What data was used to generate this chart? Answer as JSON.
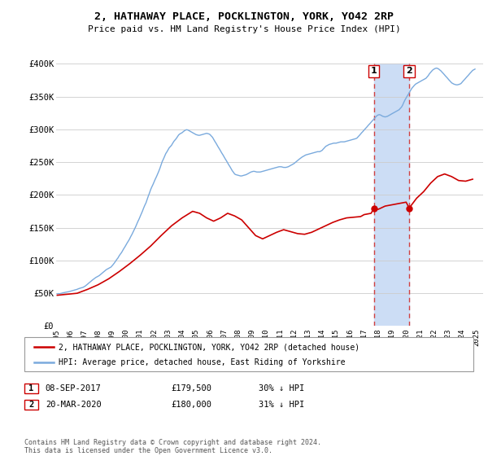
{
  "title": "2, HATHAWAY PLACE, POCKLINGTON, YORK, YO42 2RP",
  "subtitle": "Price paid vs. HM Land Registry's House Price Index (HPI)",
  "ylim": [
    0,
    400000
  ],
  "yticks": [
    0,
    50000,
    100000,
    150000,
    200000,
    250000,
    300000,
    350000,
    400000
  ],
  "ytick_labels": [
    "£0",
    "£50K",
    "£100K",
    "£150K",
    "£200K",
    "£250K",
    "£300K",
    "£350K",
    "£400K"
  ],
  "xlim_start": 1995.0,
  "xlim_end": 2025.5,
  "legend_line1": "2, HATHAWAY PLACE, POCKLINGTON, YORK, YO42 2RP (detached house)",
  "legend_line2": "HPI: Average price, detached house, East Riding of Yorkshire",
  "sale1_date": "08-SEP-2017",
  "sale1_price": "£179,500",
  "sale1_pct": "30% ↓ HPI",
  "sale1_x": 2017.69,
  "sale1_y": 179500,
  "sale2_date": "20-MAR-2020",
  "sale2_price": "£180,000",
  "sale2_pct": "31% ↓ HPI",
  "sale2_x": 2020.22,
  "sale2_y": 180000,
  "highlight_color": "#ccddf5",
  "vline_color": "#d04040",
  "red_line_color": "#cc0000",
  "blue_line_color": "#7aaadd",
  "footer": "Contains HM Land Registry data © Crown copyright and database right 2024.\nThis data is licensed under the Open Government Licence v3.0.",
  "hpi_data_x": [
    1995.08,
    1995.17,
    1995.25,
    1995.33,
    1995.42,
    1995.5,
    1995.58,
    1995.67,
    1995.75,
    1995.83,
    1995.92,
    1996.0,
    1996.08,
    1996.17,
    1996.25,
    1996.33,
    1996.42,
    1996.5,
    1996.58,
    1996.67,
    1996.75,
    1996.83,
    1996.92,
    1997.0,
    1997.08,
    1997.17,
    1997.25,
    1997.33,
    1997.42,
    1997.5,
    1997.58,
    1997.67,
    1997.75,
    1997.83,
    1997.92,
    1998.0,
    1998.08,
    1998.17,
    1998.25,
    1998.33,
    1998.42,
    1998.5,
    1998.58,
    1998.67,
    1998.75,
    1998.83,
    1998.92,
    1999.0,
    1999.08,
    1999.17,
    1999.25,
    1999.33,
    1999.42,
    1999.5,
    1999.58,
    1999.67,
    1999.75,
    1999.83,
    1999.92,
    2000.0,
    2000.08,
    2000.17,
    2000.25,
    2000.33,
    2000.42,
    2000.5,
    2000.58,
    2000.67,
    2000.75,
    2000.83,
    2000.92,
    2001.0,
    2001.08,
    2001.17,
    2001.25,
    2001.33,
    2001.42,
    2001.5,
    2001.58,
    2001.67,
    2001.75,
    2001.83,
    2001.92,
    2002.0,
    2002.08,
    2002.17,
    2002.25,
    2002.33,
    2002.42,
    2002.5,
    2002.58,
    2002.67,
    2002.75,
    2002.83,
    2002.92,
    2003.0,
    2003.08,
    2003.17,
    2003.25,
    2003.33,
    2003.42,
    2003.5,
    2003.58,
    2003.67,
    2003.75,
    2003.83,
    2003.92,
    2004.0,
    2004.08,
    2004.17,
    2004.25,
    2004.33,
    2004.42,
    2004.5,
    2004.58,
    2004.67,
    2004.75,
    2004.83,
    2004.92,
    2005.0,
    2005.08,
    2005.17,
    2005.25,
    2005.33,
    2005.42,
    2005.5,
    2005.58,
    2005.67,
    2005.75,
    2005.83,
    2005.92,
    2006.0,
    2006.08,
    2006.17,
    2006.25,
    2006.33,
    2006.42,
    2006.5,
    2006.58,
    2006.67,
    2006.75,
    2006.83,
    2006.92,
    2007.0,
    2007.08,
    2007.17,
    2007.25,
    2007.33,
    2007.42,
    2007.5,
    2007.58,
    2007.67,
    2007.75,
    2007.83,
    2007.92,
    2008.0,
    2008.08,
    2008.17,
    2008.25,
    2008.33,
    2008.42,
    2008.5,
    2008.58,
    2008.67,
    2008.75,
    2008.83,
    2008.92,
    2009.0,
    2009.08,
    2009.17,
    2009.25,
    2009.33,
    2009.42,
    2009.5,
    2009.58,
    2009.67,
    2009.75,
    2009.83,
    2009.92,
    2010.0,
    2010.08,
    2010.17,
    2010.25,
    2010.33,
    2010.42,
    2010.5,
    2010.58,
    2010.67,
    2010.75,
    2010.83,
    2010.92,
    2011.0,
    2011.08,
    2011.17,
    2011.25,
    2011.33,
    2011.42,
    2011.5,
    2011.58,
    2011.67,
    2011.75,
    2011.83,
    2011.92,
    2012.0,
    2012.08,
    2012.17,
    2012.25,
    2012.33,
    2012.42,
    2012.5,
    2012.58,
    2012.67,
    2012.75,
    2012.83,
    2012.92,
    2013.0,
    2013.08,
    2013.17,
    2013.25,
    2013.33,
    2013.42,
    2013.5,
    2013.58,
    2013.67,
    2013.75,
    2013.83,
    2013.92,
    2014.0,
    2014.08,
    2014.17,
    2014.25,
    2014.33,
    2014.42,
    2014.5,
    2014.58,
    2014.67,
    2014.75,
    2014.83,
    2014.92,
    2015.0,
    2015.08,
    2015.17,
    2015.25,
    2015.33,
    2015.42,
    2015.5,
    2015.58,
    2015.67,
    2015.75,
    2015.83,
    2015.92,
    2016.0,
    2016.08,
    2016.17,
    2016.25,
    2016.33,
    2016.42,
    2016.5,
    2016.58,
    2016.67,
    2016.75,
    2016.83,
    2016.92,
    2017.0,
    2017.08,
    2017.17,
    2017.25,
    2017.33,
    2017.42,
    2017.5,
    2017.58,
    2017.67,
    2017.75,
    2017.83,
    2017.92,
    2018.0,
    2018.08,
    2018.17,
    2018.25,
    2018.33,
    2018.42,
    2018.5,
    2018.58,
    2018.67,
    2018.75,
    2018.83,
    2018.92,
    2019.0,
    2019.08,
    2019.17,
    2019.25,
    2019.33,
    2019.42,
    2019.5,
    2019.58,
    2019.67,
    2019.75,
    2019.83,
    2019.92,
    2020.0,
    2020.08,
    2020.17,
    2020.25,
    2020.33,
    2020.42,
    2020.5,
    2020.58,
    2020.67,
    2020.75,
    2020.83,
    2020.92,
    2021.0,
    2021.08,
    2021.17,
    2021.25,
    2021.33,
    2021.42,
    2021.5,
    2021.58,
    2021.67,
    2021.75,
    2021.83,
    2021.92,
    2022.0,
    2022.08,
    2022.17,
    2022.25,
    2022.33,
    2022.42,
    2022.5,
    2022.58,
    2022.67,
    2022.75,
    2022.83,
    2022.92,
    2023.0,
    2023.08,
    2023.17,
    2023.25,
    2023.33,
    2023.42,
    2023.5,
    2023.58,
    2023.67,
    2023.75,
    2023.83,
    2023.92,
    2024.0,
    2024.08,
    2024.17,
    2024.25,
    2024.33,
    2024.42,
    2024.5,
    2024.58,
    2024.67,
    2024.75,
    2024.83,
    2024.92
  ],
  "hpi_data_y": [
    49000,
    49500,
    49200,
    49800,
    50200,
    50800,
    51000,
    51500,
    51800,
    52000,
    52500,
    53000,
    53500,
    54000,
    54500,
    55000,
    55500,
    56000,
    56800,
    57500,
    58000,
    58500,
    59000,
    60000,
    61000,
    62500,
    64000,
    65500,
    67000,
    68500,
    70000,
    71500,
    73000,
    74000,
    75000,
    76000,
    77000,
    78500,
    80000,
    81500,
    83000,
    84500,
    86000,
    87000,
    88000,
    89000,
    90000,
    92000,
    94000,
    96500,
    99000,
    101500,
    104000,
    107000,
    109500,
    112000,
    115000,
    118000,
    121000,
    124000,
    127000,
    130000,
    133000,
    136500,
    140000,
    143500,
    147000,
    151000,
    155000,
    159000,
    163000,
    167000,
    171000,
    175500,
    180000,
    184000,
    188000,
    193000,
    198000,
    203000,
    208000,
    212000,
    216000,
    220000,
    224000,
    228000,
    232000,
    236000,
    241000,
    246000,
    251000,
    255000,
    259000,
    263000,
    266000,
    269000,
    272000,
    274000,
    276000,
    279000,
    282000,
    284000,
    286000,
    289000,
    291500,
    293000,
    294000,
    295000,
    296500,
    298000,
    299000,
    299500,
    299000,
    298000,
    297000,
    296000,
    295000,
    294000,
    293000,
    292000,
    291500,
    291000,
    291000,
    291500,
    292000,
    292500,
    293000,
    293500,
    294000,
    293500,
    293000,
    292000,
    290000,
    288000,
    285000,
    282000,
    279000,
    276000,
    273000,
    270000,
    267000,
    264000,
    261000,
    258000,
    255000,
    252000,
    249000,
    246000,
    243000,
    240000,
    237000,
    234500,
    232000,
    231000,
    230500,
    230000,
    229500,
    229000,
    229000,
    229500,
    230000,
    230500,
    231000,
    232000,
    233000,
    234000,
    235000,
    235500,
    236000,
    236000,
    235500,
    235000,
    235000,
    235000,
    235000,
    235500,
    236000,
    236500,
    237000,
    237500,
    238000,
    238500,
    239000,
    239500,
    240000,
    240500,
    241000,
    241500,
    242000,
    242500,
    243000,
    243000,
    243000,
    242500,
    242000,
    242000,
    242000,
    242500,
    243000,
    244000,
    245000,
    246000,
    247000,
    248000,
    249500,
    251000,
    252500,
    254000,
    255500,
    257000,
    258000,
    259000,
    260000,
    261000,
    261500,
    262000,
    262500,
    263000,
    263500,
    264000,
    264500,
    265000,
    265500,
    266000,
    266000,
    266000,
    267000,
    268000,
    270000,
    272000,
    274000,
    275000,
    276000,
    277000,
    277500,
    278000,
    278500,
    279000,
    279000,
    279000,
    279500,
    280000,
    280500,
    281000,
    281000,
    281000,
    281000,
    281500,
    282000,
    282500,
    283000,
    283500,
    284000,
    284500,
    285000,
    285500,
    286000,
    287000,
    289000,
    291000,
    293000,
    295000,
    297000,
    299000,
    301000,
    303000,
    305000,
    307000,
    309000,
    311000,
    313000,
    315000,
    317000,
    319000,
    321000,
    322000,
    322500,
    322000,
    321000,
    320000,
    319500,
    319000,
    319500,
    320000,
    321000,
    322000,
    323000,
    324000,
    325000,
    326000,
    327000,
    328000,
    329000,
    330000,
    332000,
    334000,
    337000,
    341000,
    345000,
    348000,
    351000,
    354000,
    357000,
    360000,
    363000,
    365000,
    367000,
    369000,
    370000,
    371000,
    372000,
    373000,
    374000,
    375000,
    376000,
    377000,
    378000,
    380000,
    382000,
    385000,
    387000,
    389000,
    391000,
    392000,
    393000,
    393500,
    393000,
    392000,
    390500,
    389000,
    387000,
    385000,
    383000,
    381000,
    379000,
    377000,
    375000,
    373000,
    371000,
    370000,
    369000,
    368500,
    368000,
    368000,
    368500,
    369000,
    370000,
    372000,
    374000,
    376000,
    378000,
    380000,
    382000,
    384000,
    386000,
    388000,
    390000,
    391000,
    392000
  ],
  "price_data_x": [
    1995.08,
    1996.5,
    1997.25,
    1998.0,
    1998.75,
    1999.5,
    2000.25,
    2001.0,
    2001.75,
    2002.5,
    2003.25,
    2004.0,
    2004.75,
    2005.25,
    2005.75,
    2006.25,
    2006.75,
    2007.25,
    2007.75,
    2008.25,
    2008.75,
    2009.25,
    2009.75,
    2010.25,
    2010.75,
    2011.25,
    2011.75,
    2012.25,
    2012.75,
    2013.25,
    2013.75,
    2014.25,
    2014.75,
    2015.25,
    2015.75,
    2016.25,
    2016.75,
    2017.0,
    2017.5,
    2017.69,
    2018.0,
    2018.5,
    2019.0,
    2019.5,
    2020.0,
    2020.22,
    2020.75,
    2021.25,
    2021.75,
    2022.25,
    2022.75,
    2023.25,
    2023.75,
    2024.25,
    2024.75
  ],
  "price_data_y": [
    47000,
    50000,
    56000,
    63000,
    72000,
    83000,
    95000,
    108000,
    122000,
    138000,
    153000,
    165000,
    175000,
    172000,
    165000,
    160000,
    165000,
    172000,
    168000,
    162000,
    150000,
    138000,
    133000,
    138000,
    143000,
    147000,
    144000,
    141000,
    140000,
    143000,
    148000,
    153000,
    158000,
    162000,
    165000,
    166000,
    167000,
    170000,
    172000,
    179500,
    178000,
    183000,
    185000,
    187000,
    189000,
    180000,
    195000,
    205000,
    218000,
    228000,
    232000,
    228000,
    222000,
    221000,
    224000
  ]
}
